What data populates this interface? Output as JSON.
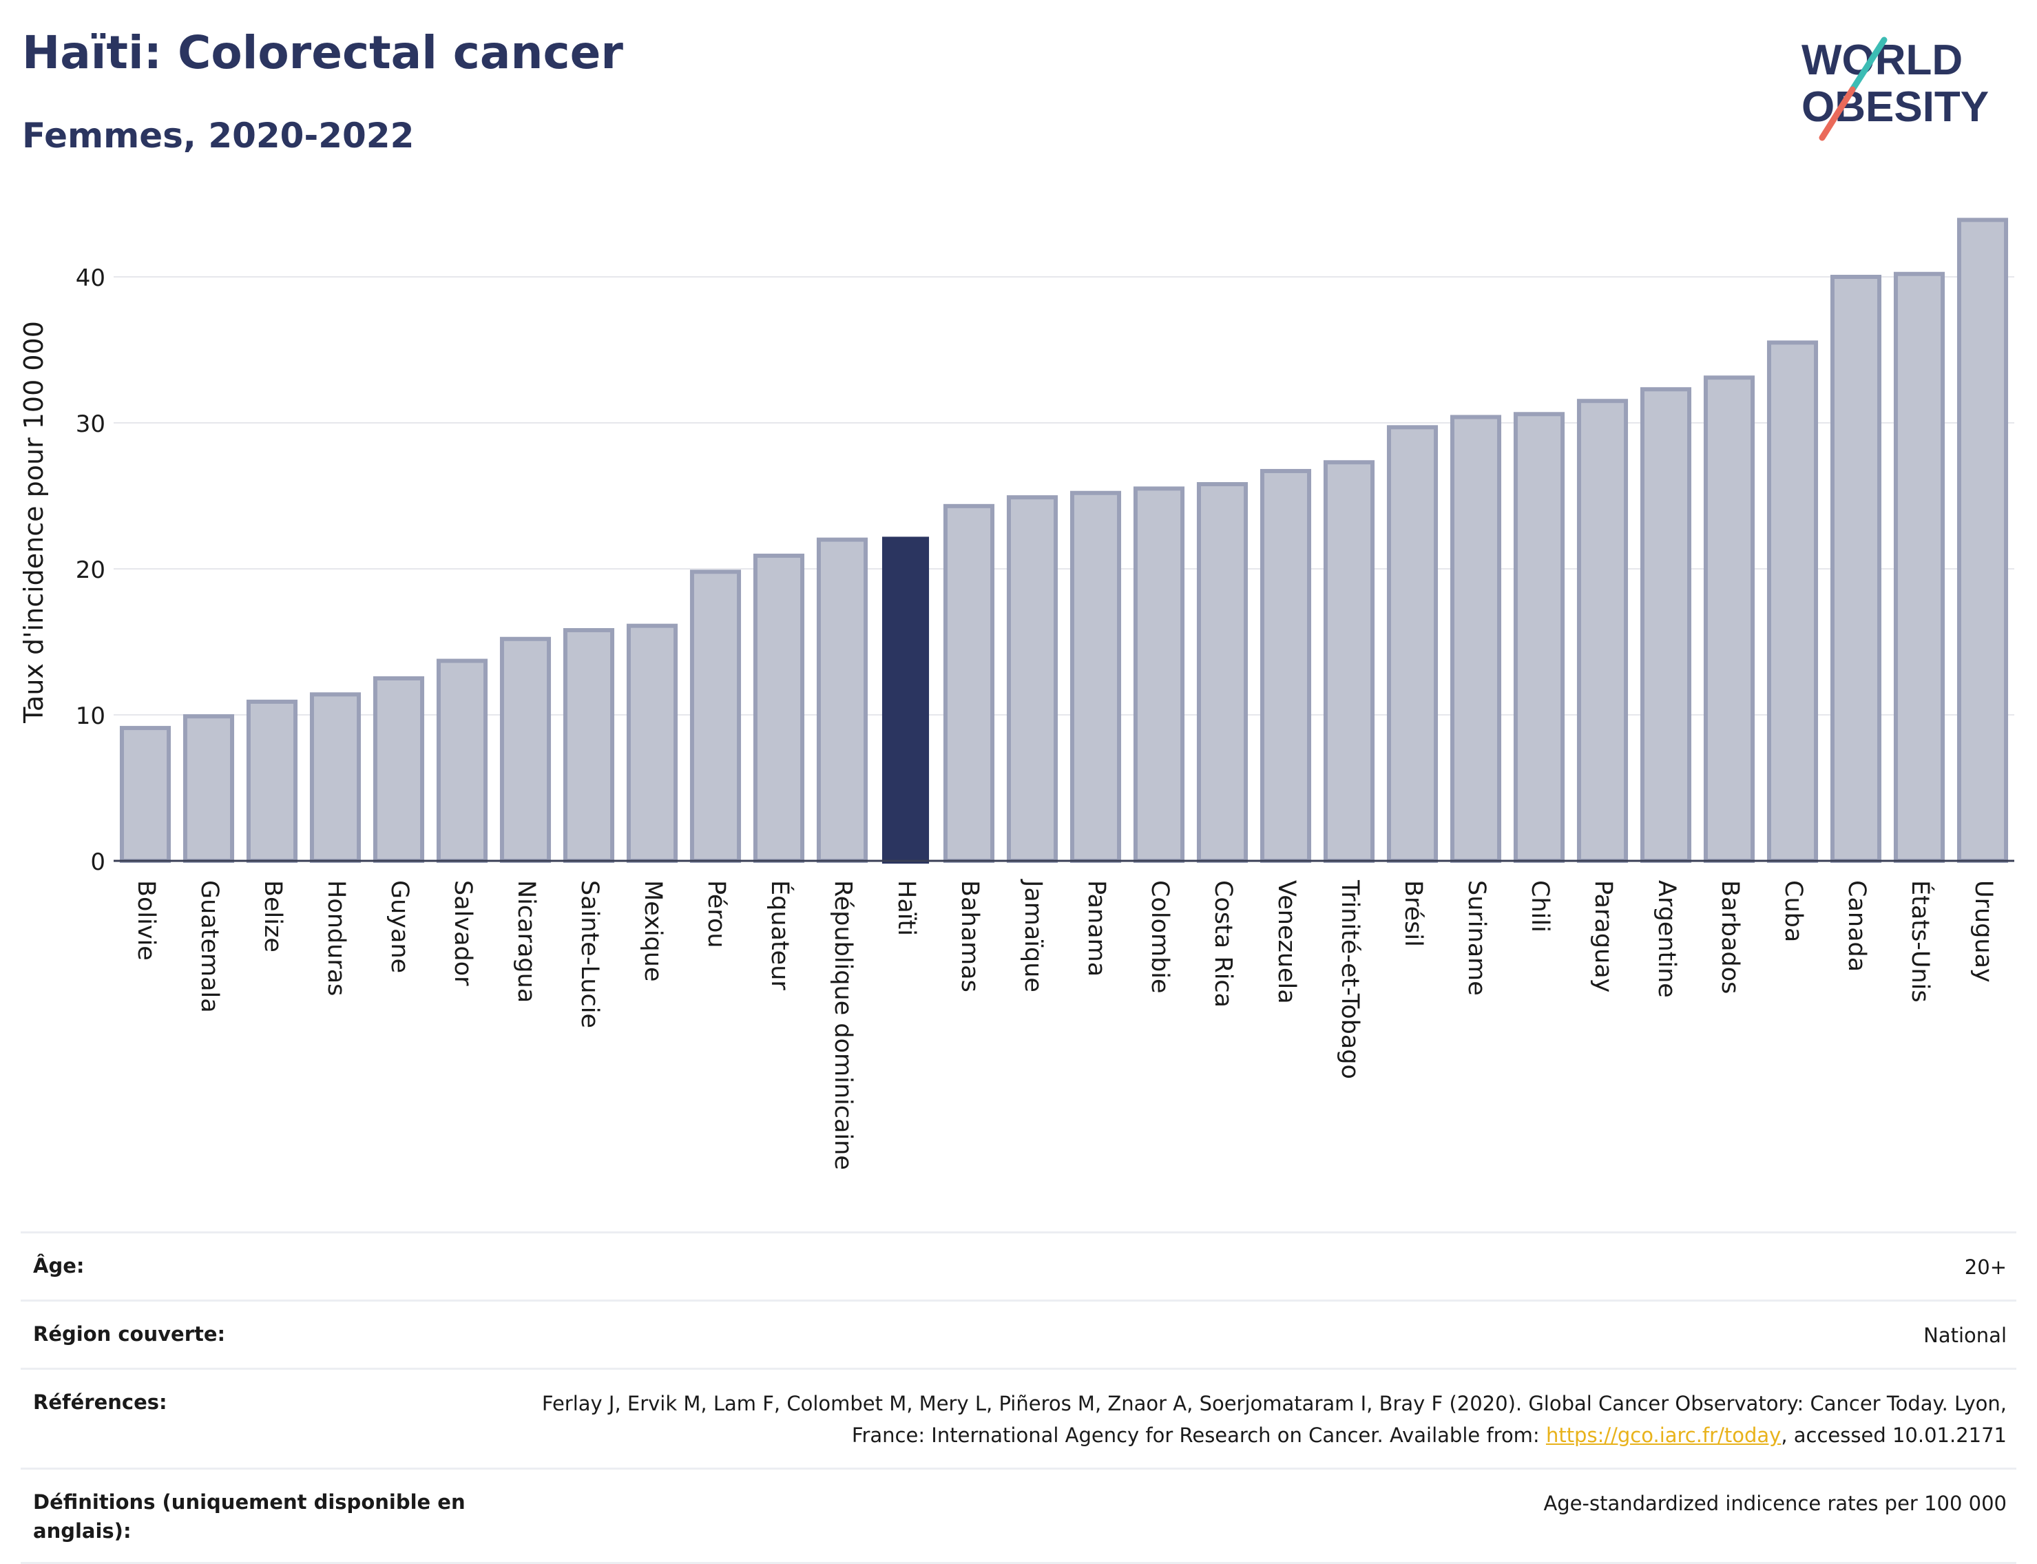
{
  "header": {
    "title": "Haïti: Colorectal cancer",
    "subtitle": "Femmes, 2020-2022"
  },
  "logo": {
    "line1": "WORLD",
    "line2": "OBESITY"
  },
  "colors": {
    "accent": "#2b3560",
    "bar_default": "#bfc3d0",
    "bar_stroke": "#9aa0b8",
    "grid": "#e6e7ec",
    "link": "#e8b21b",
    "logo_teal": "#3cbcb4",
    "logo_coral": "#ea6a5a"
  },
  "chart_data": {
    "type": "bar",
    "ylabel": "Taux d'incidence pour 100 000",
    "ylim": [
      0,
      45
    ],
    "yticks": [
      0,
      10,
      20,
      30,
      40
    ],
    "grid": true,
    "highlight": "Haïti",
    "categories": [
      "Bolivie",
      "Guatemala",
      "Belize",
      "Honduras",
      "Guyane",
      "Salvador",
      "Nicaragua",
      "Sainte-Lucie",
      "Mexique",
      "Pérou",
      "Équateur",
      "République dominicaine",
      "Haïti",
      "Bahamas",
      "Jamaïque",
      "Panama",
      "Colombie",
      "Costa Rica",
      "Venezuela",
      "Trinité-et-Tobago",
      "Brésil",
      "Suriname",
      "Chili",
      "Paraguay",
      "Argentine",
      "Barbados",
      "Cuba",
      "Canada",
      "États-Unis",
      "Uruguay"
    ],
    "values": [
      9.1,
      9.9,
      10.9,
      11.4,
      12.5,
      13.7,
      15.2,
      15.8,
      16.1,
      19.8,
      20.9,
      22.0,
      22.2,
      24.3,
      24.9,
      25.2,
      25.5,
      25.8,
      26.7,
      27.3,
      29.7,
      30.4,
      30.6,
      31.5,
      32.3,
      33.1,
      35.5,
      40.0,
      40.2,
      43.9
    ]
  },
  "metadata": {
    "age_label": "Âge:",
    "age_value": "20+",
    "region_label": "Région couverte:",
    "region_value": "National",
    "references_label": "Références:",
    "references_text": "Ferlay J, Ervik M, Lam F, Colombet M, Mery L, Piñeros M, Znaor A, Soerjomataram I, Bray F (2020). Global Cancer Observatory: Cancer Today. Lyon, France: International Agency for Research on Cancer. Available from: ",
    "references_link": "https://gco.iarc.fr/today",
    "references_suffix": ", accessed 10.01.2171",
    "definitions_label": "Définitions (uniquement disponible en anglais):",
    "definitions_value": "Age-standardized indicence rates per 100 000"
  }
}
